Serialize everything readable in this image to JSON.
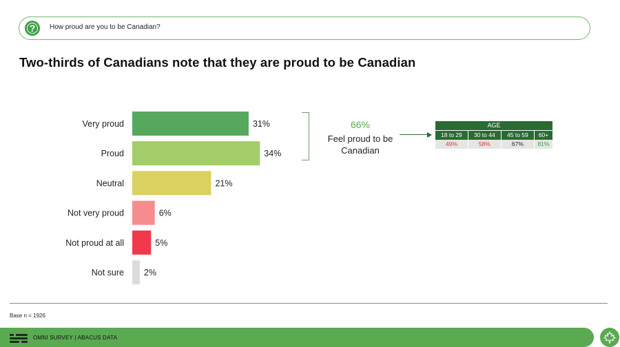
{
  "question": {
    "text": "How proud are you to be Canadian?"
  },
  "title": "Two-thirds of Canadians note that they are proud to be Canadian",
  "chart_data": {
    "type": "bar",
    "orientation": "horizontal",
    "categories": [
      "Very proud",
      "Proud",
      "Neutral",
      "Not very proud",
      "Not proud at all",
      "Not sure"
    ],
    "values": [
      31,
      34,
      21,
      6,
      5,
      2
    ],
    "value_labels": [
      "31%",
      "34%",
      "21%",
      "6%",
      "5%",
      "2%"
    ],
    "colors": [
      "#56a85c",
      "#a3cc6a",
      "#dbd160",
      "#f78c8f",
      "#f0394b",
      "#dcdcdc"
    ],
    "xlim": [
      0,
      40
    ],
    "grid": false
  },
  "summary": {
    "percent": "66%",
    "label": "Feel proud to be Canadian"
  },
  "age_table": {
    "header": "AGE",
    "groups": [
      "18 to 29",
      "30 to 44",
      "45 to 59",
      "60+"
    ],
    "values": [
      "49%",
      "58%",
      "67%",
      "81%"
    ],
    "value_colors": [
      "#e8333c",
      "#e8333c",
      "#1f1f1f",
      "#3a9a45"
    ]
  },
  "footer": {
    "base": "Base n = 1926",
    "brand": "OMNI SURVEY  |  ABACUS DATA"
  },
  "colors": {
    "accent_green": "#5aaa52",
    "table_green": "#2a6a33"
  },
  "icons": {
    "question": "question-circle-icon",
    "leaf": "maple-leaf-icon",
    "logo": "abacus-logo-icon"
  }
}
